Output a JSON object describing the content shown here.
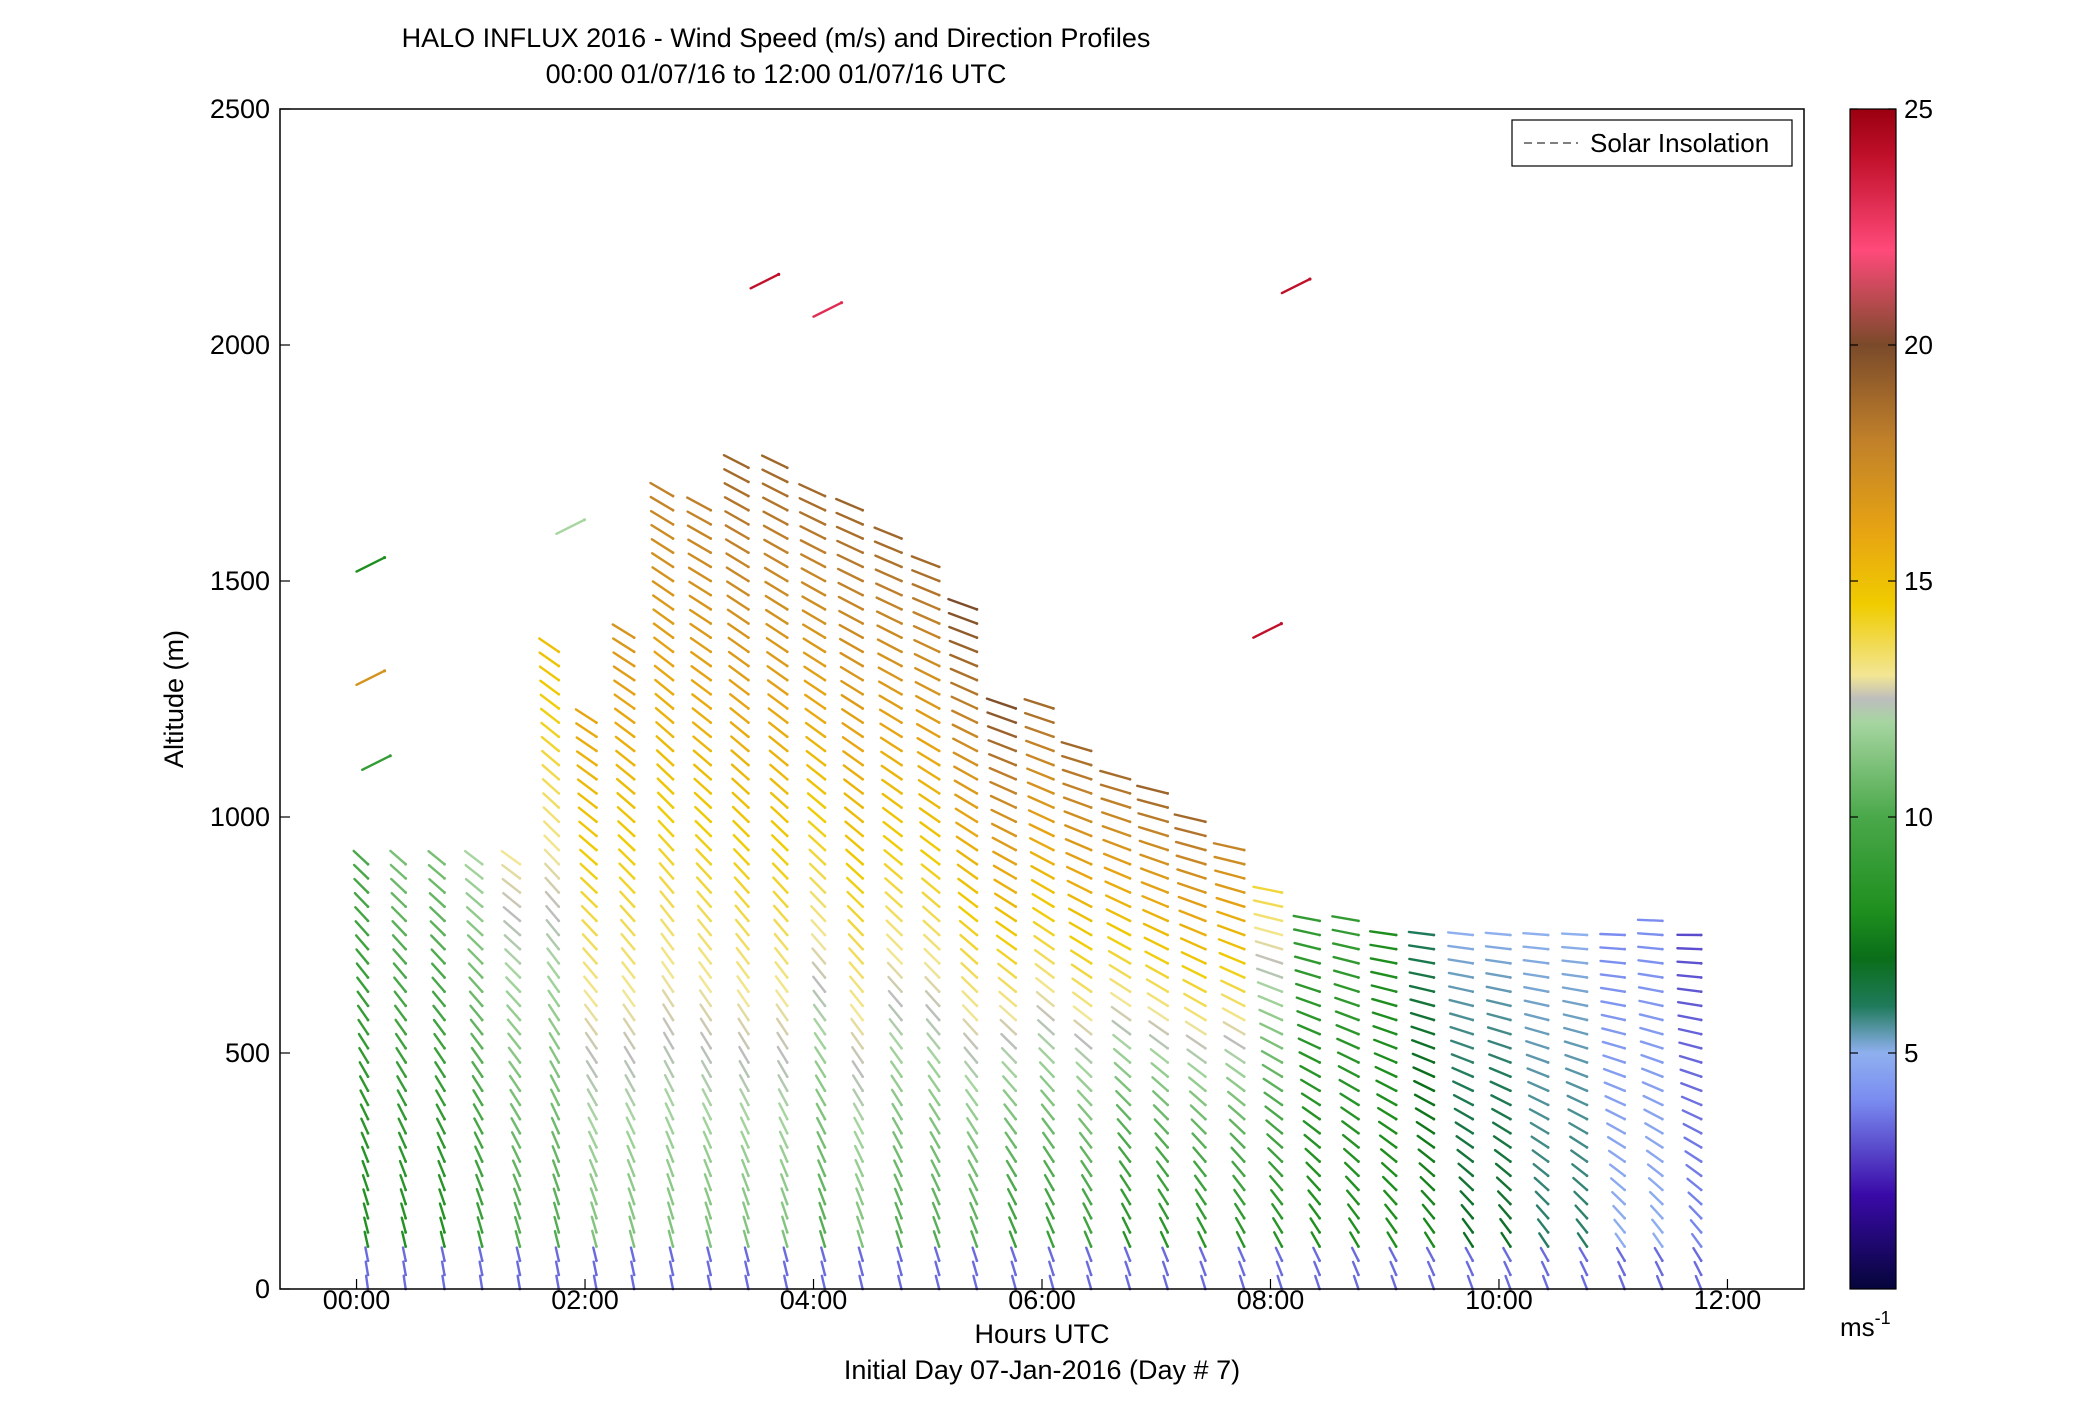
{
  "chart_data": {
    "type": "wind_profile_barbs",
    "title": "HALO INFLUX 2016 - Wind Speed (m/s) and Direction Profiles",
    "subtitle": "00:00 01/07/16 to 12:00 01/07/16  UTC",
    "xlabel": "Hours UTC",
    "xlabel2": "Initial Day 07-Jan-2016 (Day # 7)",
    "ylabel": "Altitude (m)",
    "xlim": [
      -0.67,
      12.67
    ],
    "ylim": [
      0,
      2500
    ],
    "xticks": [
      0,
      2,
      4,
      6,
      8,
      10,
      12
    ],
    "xtick_labels": [
      "00:00",
      "02:00",
      "04:00",
      "06:00",
      "08:00",
      "10:00",
      "12:00"
    ],
    "yticks": [
      0,
      500,
      1000,
      1500,
      2000,
      2500
    ],
    "ytick_labels": [
      "0",
      "500",
      "1000",
      "1500",
      "2000",
      "2500"
    ],
    "legend": {
      "entries": [
        "Solar Insolation"
      ],
      "placement": "top-right",
      "style": "dashed-gray"
    },
    "colorbar": {
      "range": [
        0,
        25
      ],
      "ticks": [
        5,
        10,
        15,
        20,
        25
      ],
      "tick_labels": [
        "5",
        "10",
        "15",
        "20",
        "25"
      ],
      "unit_label": "ms",
      "unit_exponent": "-1",
      "stops": [
        {
          "v": 0,
          "color": "#05053a"
        },
        {
          "v": 2,
          "color": "#3a0aa8"
        },
        {
          "v": 4,
          "color": "#7a8cf0"
        },
        {
          "v": 5,
          "color": "#8fb0ef"
        },
        {
          "v": 6,
          "color": "#1f7a5a"
        },
        {
          "v": 7,
          "color": "#0a6e1a"
        },
        {
          "v": 8,
          "color": "#1e8f1e"
        },
        {
          "v": 10,
          "color": "#4aa84a"
        },
        {
          "v": 12,
          "color": "#a6d5a0"
        },
        {
          "v": 12.5,
          "color": "#bdbdbd"
        },
        {
          "v": 13,
          "color": "#f2e694"
        },
        {
          "v": 14.5,
          "color": "#f0cc00"
        },
        {
          "v": 16,
          "color": "#e8a512"
        },
        {
          "v": 18,
          "color": "#c0802a"
        },
        {
          "v": 20,
          "color": "#7a4a2a"
        },
        {
          "v": 22,
          "color": "#ff4a7a"
        },
        {
          "v": 24,
          "color": "#c0102a"
        },
        {
          "v": 25,
          "color": "#9a0010"
        }
      ]
    },
    "profiles": {
      "times": [
        0.1,
        0.43,
        0.77,
        1.1,
        1.43,
        1.77,
        2.1,
        2.43,
        2.77,
        3.1,
        3.43,
        3.77,
        4.1,
        4.43,
        4.77,
        5.1,
        5.43,
        5.77,
        6.1,
        6.43,
        6.77,
        7.1,
        7.43,
        7.77,
        8.1,
        8.43,
        8.77,
        9.1,
        9.43,
        9.77,
        10.1,
        10.43,
        10.77,
        11.1,
        11.43,
        11.77
      ],
      "top_altitude_m": [
        900,
        900,
        900,
        900,
        900,
        1350,
        1200,
        1400,
        1700,
        1650,
        1750,
        1750,
        1700,
        1650,
        1600,
        1550,
        1450,
        1250,
        1250,
        1150,
        1100,
        1050,
        1000,
        950,
        850,
        800,
        800,
        750,
        750,
        750,
        750,
        750,
        750,
        750,
        800,
        750
      ],
      "speed_low_ms": [
        8,
        8,
        8,
        9,
        10,
        10,
        11,
        11,
        11,
        11,
        11,
        11,
        10,
        11,
        10,
        10,
        10,
        9,
        9,
        9,
        8,
        8,
        8,
        8,
        8,
        8,
        8,
        8,
        8,
        7,
        7,
        6,
        6,
        5,
        5,
        4
      ],
      "speed_high_ms": [
        10,
        11,
        11,
        12,
        13,
        15,
        16,
        17,
        18,
        18,
        19,
        19,
        19,
        19,
        19,
        19,
        20,
        20,
        19,
        19,
        19,
        19,
        19,
        18,
        14,
        9,
        9,
        8,
        6,
        5,
        5,
        5,
        5,
        4,
        4,
        3
      ],
      "isolated_barbs": [
        {
          "t": 3.45,
          "z": 2120,
          "speed": 24
        },
        {
          "t": 4.0,
          "z": 2060,
          "speed": 23
        },
        {
          "t": 8.1,
          "z": 2110,
          "speed": 24
        },
        {
          "t": 7.85,
          "z": 1380,
          "speed": 24
        },
        {
          "t": 0.0,
          "z": 1520,
          "speed": 8
        },
        {
          "t": 0.0,
          "z": 1280,
          "speed": 17
        },
        {
          "t": 0.05,
          "z": 1100,
          "speed": 9
        },
        {
          "t": 1.75,
          "z": 1600,
          "speed": 12
        }
      ]
    }
  }
}
